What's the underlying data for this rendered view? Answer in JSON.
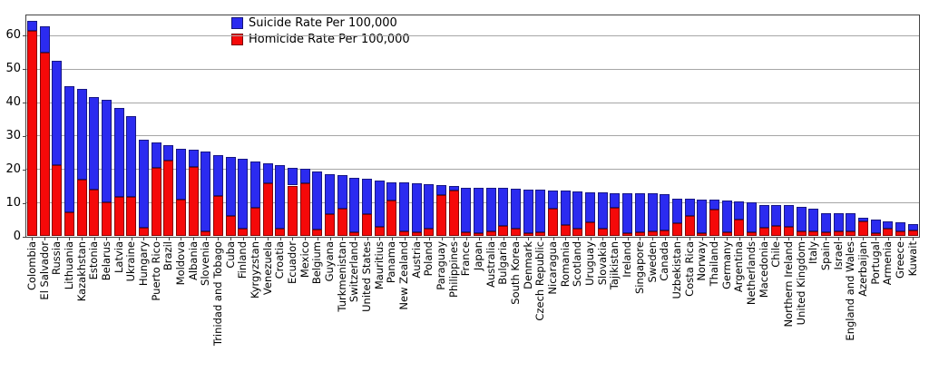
{
  "chart_data": {
    "type": "bar",
    "stacked": true,
    "title": "",
    "xlabel": "",
    "ylabel": "",
    "categories": [
      "Colombia",
      "El Salvador",
      "Russia",
      "Lithuania",
      "Kazakhstan",
      "Estonia",
      "Belarus",
      "Latvia",
      "Ukraine",
      "Hungary",
      "Puerto Rico",
      "Brazil",
      "Moldova",
      "Albania",
      "Slovenia",
      "Trinidad and Tobago",
      "Cuba",
      "Finland",
      "Kyrgyzstan",
      "Venezuela",
      "Croatia",
      "Ecuador",
      "Mexico",
      "Belgium",
      "Guyana",
      "Turkmenistan",
      "Switzerland",
      "United States",
      "Mauritius",
      "Panama",
      "New Zealand",
      "Austria",
      "Poland",
      "Paraguay",
      "Philippines",
      "France",
      "Japan",
      "Australia",
      "Bulgaria",
      "South Korea",
      "Denmark",
      "Czech Republic",
      "Nicaragua",
      "Romania",
      "Scotland",
      "Uruguay",
      "Slovakia",
      "Tajikistan",
      "Ireland",
      "Singapore",
      "Sweden",
      "Canada",
      "Uzbekistan",
      "Costa Rica",
      "Norway",
      "Thailand",
      "Germany",
      "Argentina",
      "Netherlands",
      "Macedonia",
      "Chile",
      "Northern Ireland",
      "United Kingdom",
      "Italy",
      "Spain",
      "Israel",
      "England and Wales",
      "Azerbaijan",
      "Portugal",
      "Armenia",
      "Greece",
      "Kuwait"
    ],
    "series": [
      {
        "name": "Suicide Rate Per 100,000",
        "color": "#2b2bf0",
        "values": [
          2.9,
          7.8,
          31.1,
          37.6,
          27.2,
          27.6,
          30.5,
          26.5,
          24.3,
          26.3,
          7.7,
          4.4,
          15.2,
          5.1,
          24.0,
          12.2,
          17.7,
          20.8,
          13.9,
          6.0,
          18.9,
          5.3,
          4.3,
          17.4,
          11.9,
          10.2,
          16.3,
          10.7,
          13.7,
          5.5,
          14.6,
          14.7,
          13.4,
          3.0,
          1.4,
          13.5,
          13.5,
          13.0,
          11.2,
          12.0,
          13.2,
          12.8,
          5.5,
          10.2,
          11.2,
          8.9,
          10.9,
          4.5,
          12.0,
          11.5,
          11.4,
          10.7,
          7.5,
          5.3,
          10.0,
          3.0,
          9.3,
          5.5,
          9.1,
          6.8,
          6.2,
          6.5,
          7.4,
          6.8,
          5.8,
          5.5,
          5.4,
          1.2,
          4.0,
          2.3,
          2.8,
          1.8
        ]
      },
      {
        "name": "Homicide Rate Per 100,000",
        "color": "#f50909",
        "values": [
          61.6,
          55.0,
          21.4,
          7.3,
          16.9,
          14.1,
          10.3,
          11.8,
          11.8,
          2.6,
          20.5,
          22.8,
          11.0,
          20.7,
          1.4,
          12.0,
          6.0,
          2.4,
          8.6,
          15.9,
          2.3,
          15.2,
          15.8,
          2.1,
          6.6,
          8.2,
          1.2,
          6.6,
          2.9,
          10.7,
          1.5,
          1.3,
          2.3,
          12.3,
          13.7,
          1.1,
          1.0,
          1.5,
          3.2,
          2.3,
          0.9,
          1.3,
          8.2,
          3.4,
          2.3,
          4.3,
          2.3,
          8.5,
          0.9,
          1.3,
          1.4,
          1.8,
          3.9,
          6.1,
          0.9,
          7.9,
          1.3,
          5.0,
          1.2,
          2.7,
          3.2,
          2.9,
          1.4,
          1.4,
          1.2,
          1.5,
          1.4,
          4.4,
          1.0,
          2.2,
          1.4,
          1.8
        ]
      }
    ],
    "stack_order_bottom_to_top": [
      "Homicide Rate Per 100,000",
      "Suicide Rate Per 100,000"
    ],
    "ylim": [
      0,
      66.1
    ],
    "yticks": [
      0,
      10,
      20,
      30,
      40,
      50,
      60
    ],
    "grid": "horizontal",
    "legend_position": "top-center"
  },
  "colors": {
    "suicide_blue": "#2b2bf0",
    "homicide_red": "#f50909",
    "gridline": "#a6a6a6",
    "spine": "#444444",
    "background": "#ffffff"
  }
}
